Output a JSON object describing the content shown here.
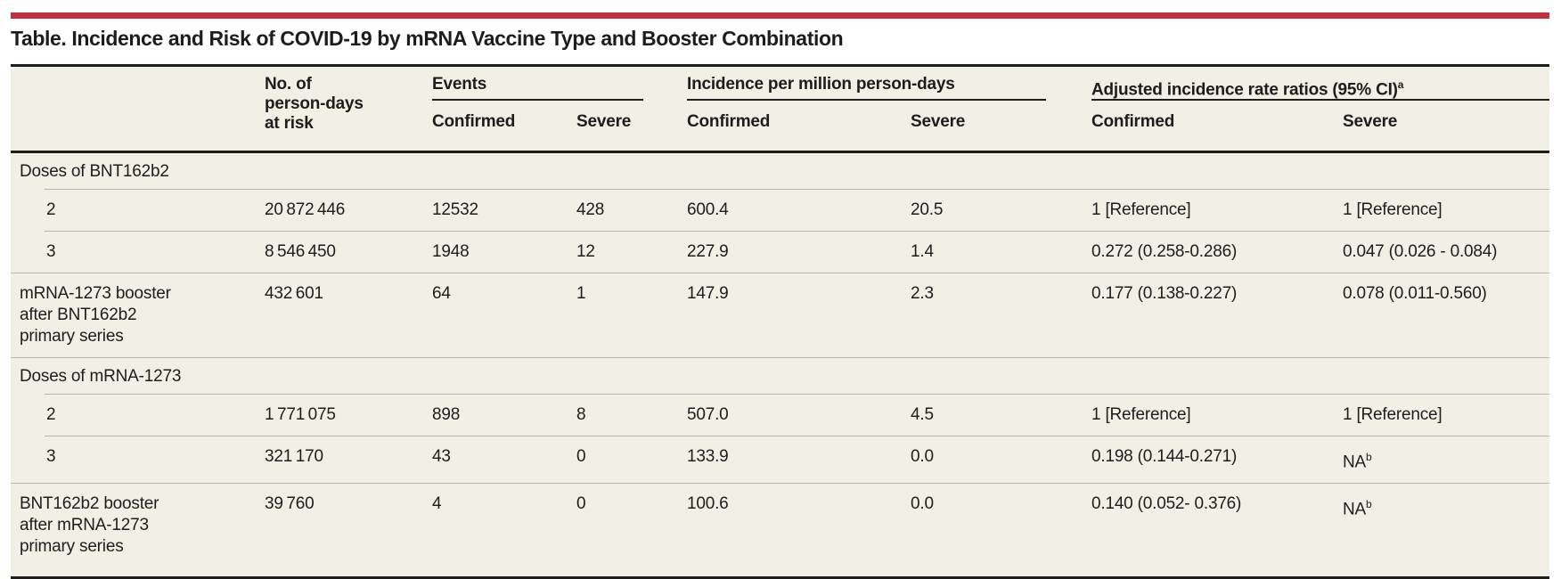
{
  "accent_color": "#c22f3d",
  "title": "Table. Incidence and Risk of COVID-19 by mRNA Vaccine Type and Booster Combination",
  "table": {
    "person_days_header": "No. of person-days at risk",
    "groups": [
      {
        "label": "Events",
        "sub": [
          "Confirmed",
          "Severe"
        ]
      },
      {
        "label": "Incidence per million person-days",
        "sub": [
          "Confirmed",
          "Severe"
        ]
      },
      {
        "label": "Adjusted incidence rate ratios (95% CI)^a",
        "sub": [
          "Confirmed",
          "Severe"
        ]
      }
    ],
    "rows": [
      {
        "kind": "section",
        "label": "Doses of BNT162b2",
        "sep_before": "none"
      },
      {
        "kind": "data",
        "indent": true,
        "label": "2",
        "sep_before": "indented",
        "values": [
          "20 872 446",
          "12532",
          "428",
          "600.4",
          "20.5",
          "1 [Reference]",
          "1 [Reference]"
        ]
      },
      {
        "kind": "data",
        "indent": true,
        "label": "3",
        "sep_before": "indented",
        "values": [
          "8 546 450",
          "1948",
          "12",
          "227.9",
          "1.4",
          "0.272 (0.258-0.286)",
          "0.047 (0.026 - 0.084)"
        ]
      },
      {
        "kind": "data",
        "indent": false,
        "label": "mRNA-1273 booster after BNT162b2 primary series",
        "sep_before": "full",
        "values": [
          "432 601",
          "64",
          "1",
          "147.9",
          "2.3",
          "0.177 (0.138-0.227)",
          "0.078 (0.011-0.560)"
        ]
      },
      {
        "kind": "section",
        "label": "Doses of mRNA-1273",
        "sep_before": "full"
      },
      {
        "kind": "data",
        "indent": true,
        "label": "2",
        "sep_before": "indented",
        "values": [
          "1 771 075",
          "898",
          "8",
          "507.0",
          "4.5",
          "1 [Reference]",
          "1 [Reference]"
        ]
      },
      {
        "kind": "data",
        "indent": true,
        "label": "3",
        "sep_before": "indented",
        "values": [
          "321 170",
          "43",
          "0",
          "133.9",
          "0.0",
          "0.198 (0.144-0.271)",
          "NA^b"
        ]
      },
      {
        "kind": "data",
        "indent": false,
        "label": "BNT162b2 booster after mRNA-1273 primary series",
        "sep_before": "full",
        "values": [
          "39 760",
          "4",
          "0",
          "100.6",
          "0.0",
          "0.140 (0.052- 0.376)",
          "NA^b"
        ]
      }
    ]
  }
}
